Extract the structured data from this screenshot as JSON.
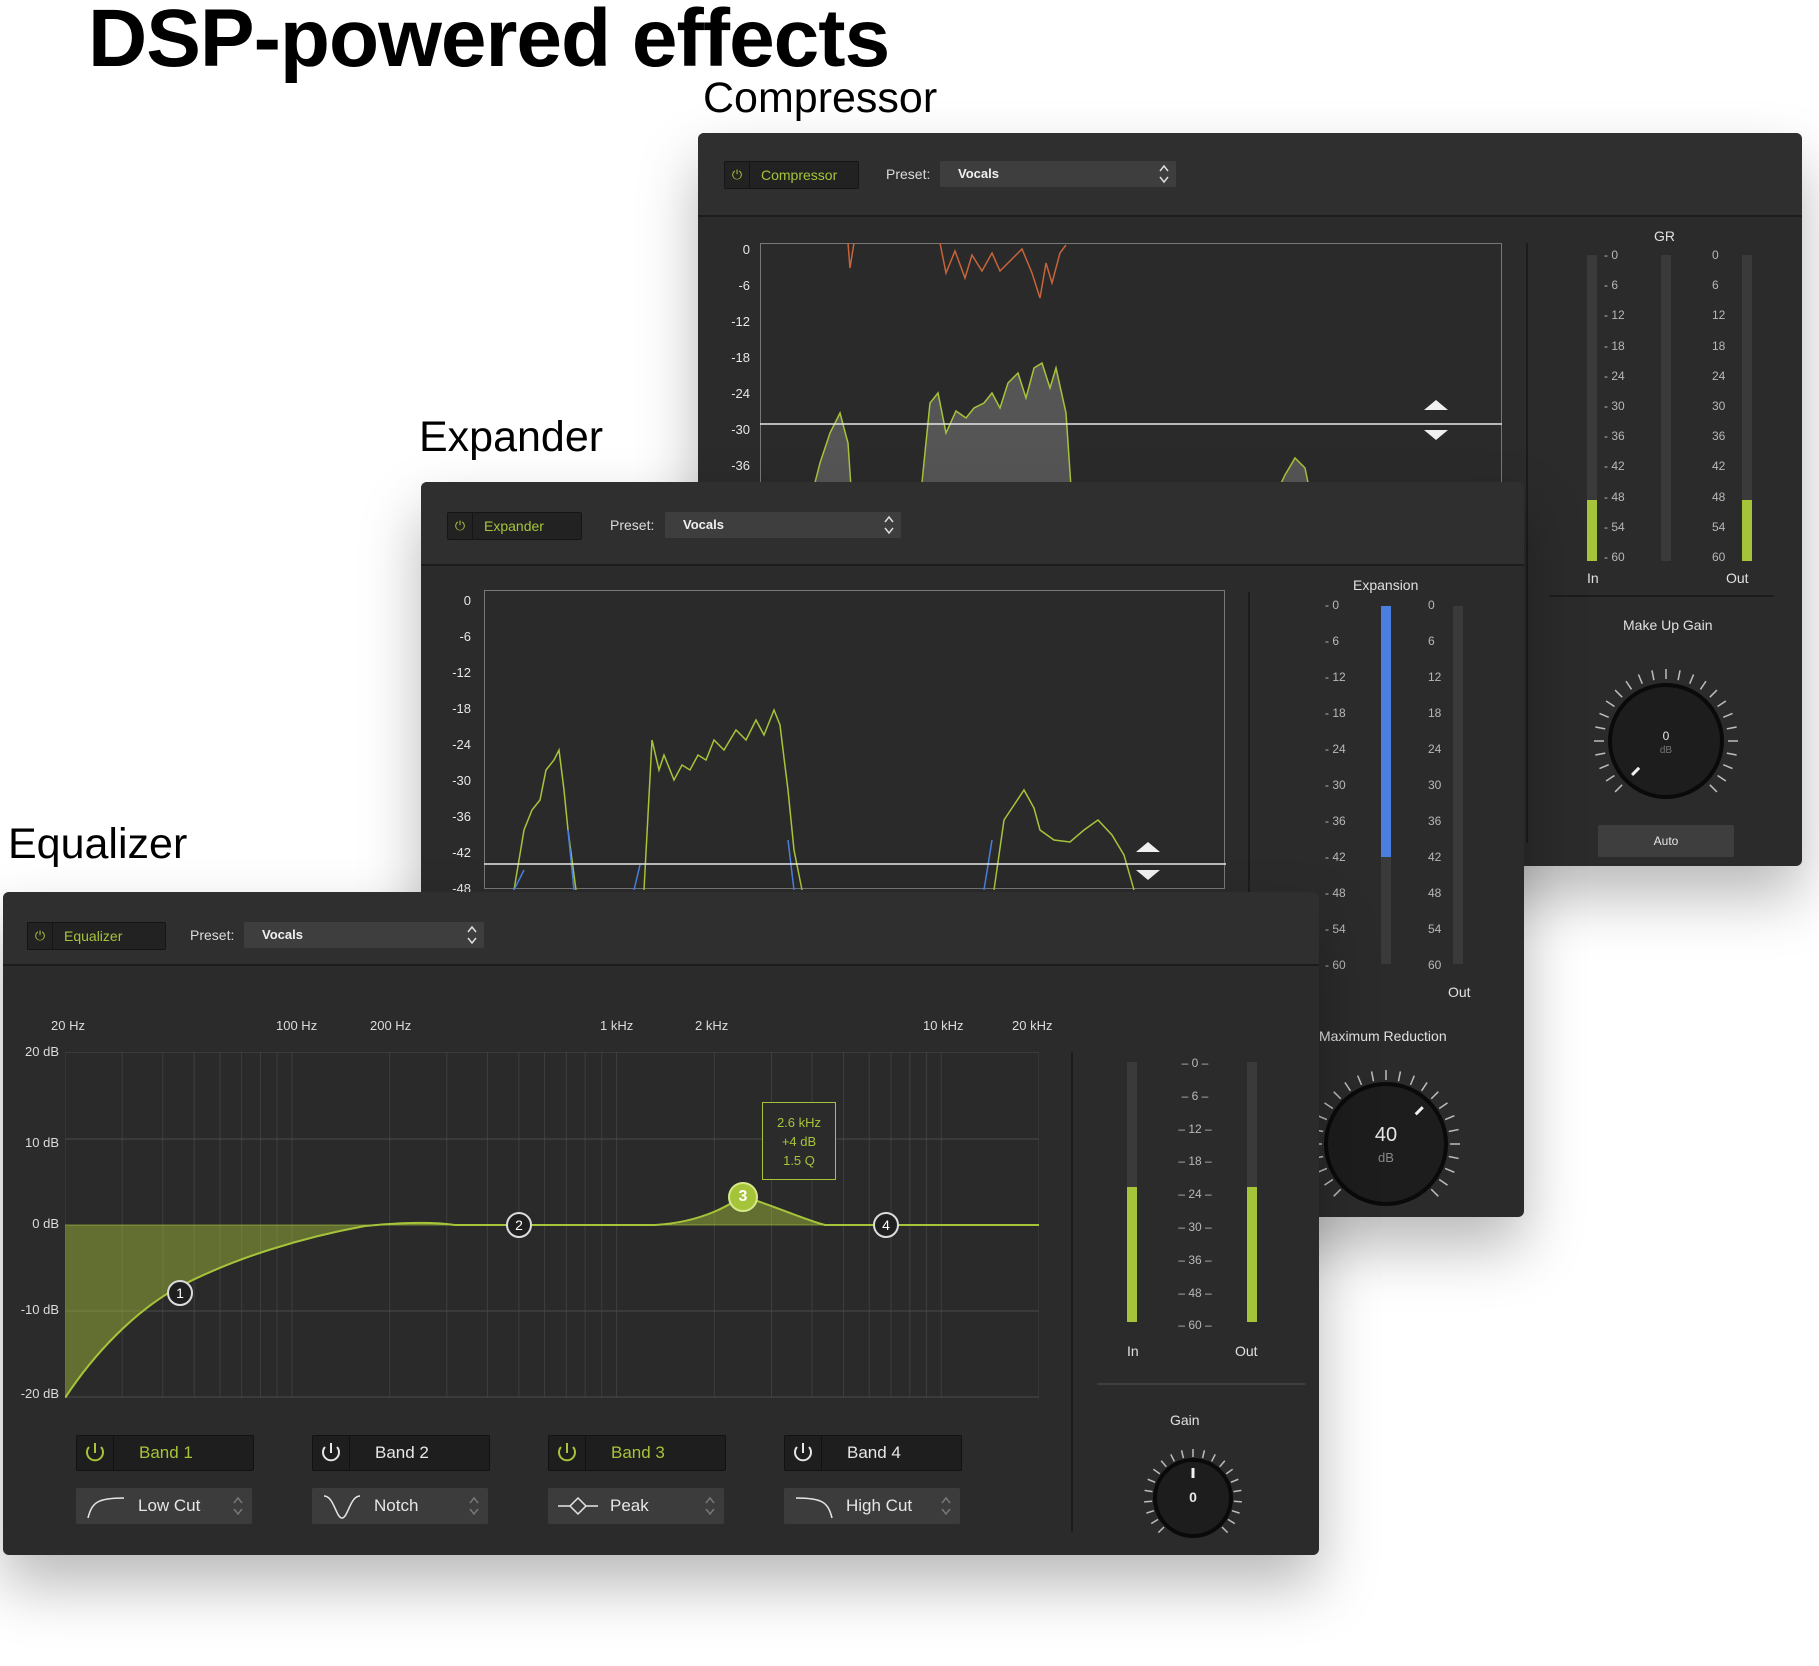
{
  "headline": "DSP-powered effects",
  "captions": {
    "compressor": "Compressor",
    "expander": "Expander",
    "equalizer": "Equalizer"
  },
  "preset_label": "Preset:",
  "colors": {
    "accent": "#a6c43a",
    "panel": "#2b2b2b",
    "expansion_meter": "#4a7fe0"
  },
  "compressor": {
    "name": "Compressor",
    "preset": "Vocals",
    "y_axis": [
      "0",
      "-6",
      "-12",
      "-18",
      "-24",
      "-30",
      "-36"
    ],
    "gr_label": "GR",
    "meter_scale_left": [
      "- 0",
      "- 6",
      "- 12",
      "- 18",
      "- 24",
      "- 30",
      "- 36",
      "- 42",
      "- 48",
      "- 54",
      "- 60"
    ],
    "meter_scale_right": [
      "0",
      "6",
      "12",
      "18",
      "24",
      "30",
      "36",
      "42",
      "48",
      "54",
      "60"
    ],
    "in_label": "In",
    "out_label": "Out",
    "in_level": 0.2,
    "out_level": 0.2,
    "makeup_label": "Make Up Gain",
    "makeup_value": "0",
    "makeup_unit": "dB",
    "auto_label": "Auto"
  },
  "expander": {
    "name": "Expander",
    "preset": "Vocals",
    "y_axis": [
      "0",
      "-6",
      "-12",
      "-18",
      "-24",
      "-30",
      "-36",
      "-42",
      "-48"
    ],
    "expansion_label": "Expansion",
    "meter_scale_left": [
      "- 0",
      "- 6",
      "- 12",
      "- 18",
      "- 24",
      "- 30",
      "- 36",
      "- 42",
      "- 48",
      "- 54",
      "- 60"
    ],
    "meter_scale_right": [
      "0",
      "6",
      "12",
      "18",
      "24",
      "30",
      "36",
      "42",
      "48",
      "54",
      "60"
    ],
    "out_label": "Out",
    "expansion_level": 0.7,
    "max_reduction_label": "Maximum Reduction",
    "max_reduction_value": "40",
    "max_reduction_unit": "dB"
  },
  "equalizer": {
    "name": "Equalizer",
    "preset": "Vocals",
    "freq_labels": [
      "20 Hz",
      "100 Hz",
      "200 Hz",
      "1 kHz",
      "2 kHz",
      "10 kHz",
      "20 kHz"
    ],
    "db_labels": [
      "20 dB",
      "10 dB",
      "0 dB",
      "-10 dB",
      "-20 dB"
    ],
    "tooltip": {
      "freq": "2.6 kHz",
      "gain": "+4 dB",
      "q": "1.5 Q"
    },
    "nodes": [
      "1",
      "2",
      "3",
      "4"
    ],
    "bands": [
      {
        "label": "Band 1",
        "type": "Low Cut",
        "active": true,
        "icon": "low-cut-icon"
      },
      {
        "label": "Band 2",
        "type": "Notch",
        "active": false,
        "icon": "notch-icon"
      },
      {
        "label": "Band 3",
        "type": "Peak",
        "active": true,
        "icon": "peak-icon"
      },
      {
        "label": "Band 4",
        "type": "High Cut",
        "active": false,
        "icon": "high-cut-icon"
      }
    ],
    "meter_scale": [
      "0",
      "6",
      "12",
      "18",
      "24",
      "30",
      "36",
      "48",
      "60"
    ],
    "in_label": "In",
    "out_label": "Out",
    "in_level": 0.52,
    "out_level": 0.52,
    "gain_label": "Gain",
    "gain_value": "0"
  }
}
